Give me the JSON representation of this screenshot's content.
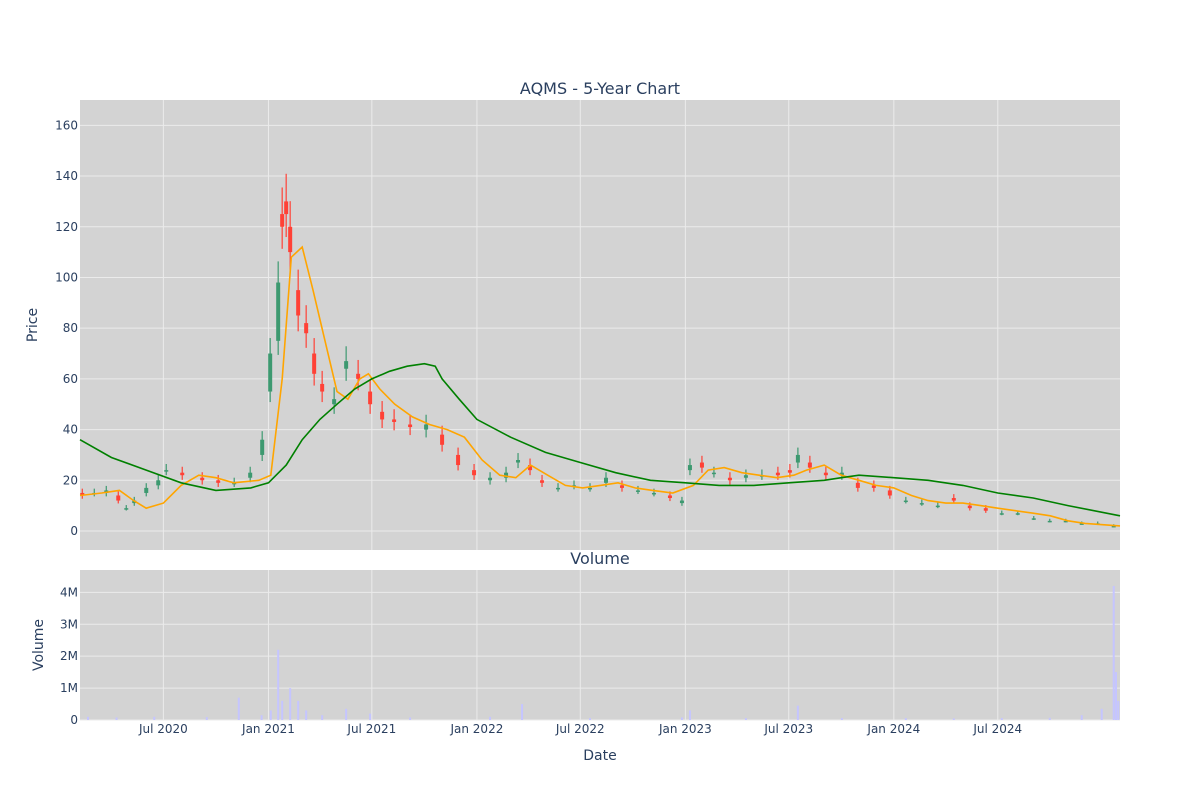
{
  "colors": {
    "plot_bg": "#d3d3d3",
    "grid": "#ebebeb",
    "text": "#2a3f5f",
    "candle_up": "#3d9970",
    "candle_down": "#ff4136",
    "ma_short": "#ffa500",
    "ma_long": "#008000",
    "volume": "#c5c5ff"
  },
  "chart_data": [
    {
      "type": "candlestick",
      "title": "AQMS - 5-Year Chart",
      "ylabel": "Price",
      "xlabel": "",
      "ylim": [
        -7.5,
        170
      ],
      "xlim": [
        "2020-02-06",
        "2025-01-31"
      ],
      "yticks": [
        0,
        20,
        40,
        60,
        80,
        100,
        120,
        140,
        160
      ],
      "grid": true,
      "legend": "none",
      "series": [
        {
          "kind": "ohlc",
          "points": [
            [
              "2020-02-10",
              15,
              14
            ],
            [
              "2020-03-02",
              15,
              15
            ],
            [
              "2020-03-23",
              15,
              16
            ],
            [
              "2020-04-13",
              14,
              12
            ],
            [
              "2020-04-27",
              9,
              9
            ],
            [
              "2020-05-11",
              11,
              12
            ],
            [
              "2020-06-01",
              15,
              17
            ],
            [
              "2020-06-22",
              18,
              20
            ],
            [
              "2020-07-06",
              24,
              24
            ],
            [
              "2020-08-03",
              23,
              22
            ],
            [
              "2020-09-07",
              21,
              20
            ],
            [
              "2020-10-05",
              20,
              19
            ],
            [
              "2020-11-02",
              19,
              19
            ],
            [
              "2020-11-30",
              21,
              23
            ],
            [
              "2020-12-21",
              30,
              36
            ],
            [
              "2021-01-04",
              55,
              70
            ],
            [
              "2021-01-18",
              75,
              98
            ],
            [
              "2021-01-25",
              125,
              120
            ],
            [
              "2021-02-01",
              130,
              125
            ],
            [
              "2021-02-08",
              120,
              110
            ],
            [
              "2021-02-22",
              95,
              85
            ],
            [
              "2021-03-08",
              82,
              78
            ],
            [
              "2021-03-22",
              70,
              62
            ],
            [
              "2021-04-05",
              58,
              55
            ],
            [
              "2021-04-26",
              50,
              52
            ],
            [
              "2021-05-17",
              64,
              67
            ],
            [
              "2021-06-07",
              62,
              60
            ],
            [
              "2021-06-28",
              55,
              50
            ],
            [
              "2021-07-19",
              47,
              44
            ],
            [
              "2021-08-09",
              44,
              43
            ],
            [
              "2021-09-06",
              42,
              41
            ],
            [
              "2021-10-04",
              40,
              42
            ],
            [
              "2021-11-01",
              38,
              34
            ],
            [
              "2021-11-29",
              30,
              26
            ],
            [
              "2021-12-27",
              24,
              22
            ],
            [
              "2022-01-24",
              20,
              21
            ],
            [
              "2022-02-21",
              21,
              23
            ],
            [
              "2022-03-14",
              27,
              28
            ],
            [
              "2022-04-04",
              26,
              24
            ],
            [
              "2022-04-25",
              20,
              19
            ],
            [
              "2022-05-23",
              17,
              17
            ],
            [
              "2022-06-20",
              18,
              18
            ],
            [
              "2022-07-18",
              17,
              17
            ],
            [
              "2022-08-15",
              19,
              21
            ],
            [
              "2022-09-12",
              18,
              17
            ],
            [
              "2022-10-10",
              16,
              16
            ],
            [
              "2022-11-07",
              15,
              15
            ],
            [
              "2022-12-05",
              14,
              13
            ],
            [
              "2022-12-26",
              11,
              12
            ],
            [
              "2023-01-09",
              24,
              26
            ],
            [
              "2023-01-30",
              27,
              25
            ],
            [
              "2023-02-20",
              23,
              23
            ],
            [
              "2023-03-20",
              21,
              20
            ],
            [
              "2023-04-17",
              21,
              22
            ],
            [
              "2023-05-15",
              22,
              22
            ],
            [
              "2023-06-12",
              23,
              22
            ],
            [
              "2023-07-03",
              24,
              23
            ],
            [
              "2023-07-17",
              27,
              30
            ],
            [
              "2023-08-07",
              27,
              25
            ],
            [
              "2023-09-04",
              23,
              22
            ],
            [
              "2023-10-02",
              22,
              23
            ],
            [
              "2023-10-30",
              19,
              17
            ],
            [
              "2023-11-27",
              18,
              17
            ],
            [
              "2023-12-25",
              16,
              14
            ],
            [
              "2024-01-22",
              12,
              12
            ],
            [
              "2024-02-19",
              11,
              11
            ],
            [
              "2024-03-18",
              10,
              10
            ],
            [
              "2024-04-15",
              13,
              12
            ],
            [
              "2024-05-13",
              10,
              9
            ],
            [
              "2024-06-10",
              9,
              8
            ],
            [
              "2024-07-08",
              7,
              7
            ],
            [
              "2024-08-05",
              7,
              7
            ],
            [
              "2024-09-02",
              5,
              5
            ],
            [
              "2024-09-30",
              4,
              4
            ],
            [
              "2024-10-28",
              4,
              4
            ],
            [
              "2024-11-25",
              3,
              3
            ],
            [
              "2024-12-23",
              3,
              3
            ],
            [
              "2025-01-20",
              2,
              2
            ]
          ]
        },
        {
          "kind": "line",
          "color_key": "ma_short",
          "x": [
            "2020-02-06",
            "2020-03-15",
            "2020-04-15",
            "2020-05-10",
            "2020-06-01",
            "2020-07-01",
            "2020-08-01",
            "2020-09-01",
            "2020-10-01",
            "2020-11-01",
            "2020-12-15",
            "2021-01-05",
            "2021-01-25",
            "2021-02-10",
            "2021-03-01",
            "2021-03-20",
            "2021-04-10",
            "2021-05-01",
            "2021-05-20",
            "2021-06-10",
            "2021-06-25",
            "2021-07-15",
            "2021-08-10",
            "2021-09-10",
            "2021-10-10",
            "2021-11-10",
            "2021-12-10",
            "2022-01-10",
            "2022-02-10",
            "2022-03-10",
            "2022-04-05",
            "2022-05-05",
            "2022-06-05",
            "2022-07-05",
            "2022-08-05",
            "2022-09-05",
            "2022-10-05",
            "2022-11-05",
            "2022-12-10",
            "2023-01-15",
            "2023-02-10",
            "2023-03-10",
            "2023-04-10",
            "2023-05-10",
            "2023-06-10",
            "2023-07-10",
            "2023-08-01",
            "2023-09-01",
            "2023-10-01",
            "2023-11-01",
            "2023-12-01",
            "2024-01-01",
            "2024-02-01",
            "2024-03-01",
            "2024-04-01",
            "2024-05-01",
            "2024-06-01",
            "2024-07-01",
            "2024-08-01",
            "2024-09-01",
            "2024-10-01",
            "2024-11-01",
            "2024-12-01",
            "2025-01-31"
          ],
          "y": [
            14,
            15,
            16,
            12,
            9,
            11,
            18,
            22,
            21,
            19,
            20,
            22,
            60,
            108,
            112,
            95,
            75,
            55,
            52,
            60,
            62,
            56,
            50,
            45,
            42,
            40,
            37,
            28,
            22,
            21,
            26,
            22,
            18,
            17,
            18,
            19,
            17,
            16,
            15,
            18,
            24,
            25,
            23,
            22,
            21,
            22,
            24,
            26,
            22,
            20,
            18,
            17,
            14,
            12,
            11,
            11,
            10,
            9,
            8,
            7,
            6,
            4,
            3,
            2
          ]
        },
        {
          "kind": "line",
          "color_key": "ma_long",
          "x": [
            "2020-02-06",
            "2020-04-01",
            "2020-06-01",
            "2020-08-01",
            "2020-10-01",
            "2020-12-01",
            "2021-01-01",
            "2021-02-01",
            "2021-03-01",
            "2021-04-01",
            "2021-05-01",
            "2021-06-01",
            "2021-07-01",
            "2021-08-01",
            "2021-09-01",
            "2021-10-01",
            "2021-10-20",
            "2021-11-01",
            "2021-12-01",
            "2022-01-01",
            "2022-03-01",
            "2022-05-01",
            "2022-07-01",
            "2022-09-01",
            "2022-11-01",
            "2023-01-01",
            "2023-03-01",
            "2023-05-01",
            "2023-07-01",
            "2023-09-01",
            "2023-10-01",
            "2023-11-01",
            "2024-01-01",
            "2024-03-01",
            "2024-05-01",
            "2024-07-01",
            "2024-09-01",
            "2024-11-01",
            "2025-01-31"
          ],
          "y": [
            36,
            29,
            24,
            19,
            16,
            17,
            19,
            26,
            36,
            44,
            50,
            56,
            60,
            63,
            65,
            66,
            65,
            60,
            52,
            44,
            37,
            31,
            27,
            23,
            20,
            19,
            18,
            18,
            19,
            20,
            21,
            22,
            21,
            20,
            18,
            15,
            13,
            10,
            6
          ]
        }
      ]
    },
    {
      "type": "bar",
      "title": "Volume",
      "xlabel": "Date",
      "ylabel": "Volume",
      "ylim": [
        0,
        4700000
      ],
      "yticks": [
        0,
        1000000,
        2000000,
        3000000,
        4000000
      ],
      "ytick_labels": [
        "0",
        "1M",
        "2M",
        "3M",
        "4M"
      ],
      "xticks": [
        "2020-07-01",
        "2021-01-01",
        "2021-07-01",
        "2022-01-01",
        "2022-07-01",
        "2023-01-01",
        "2023-07-01",
        "2024-01-01",
        "2024-07-01"
      ],
      "xtick_labels": [
        "Jul 2020",
        "Jan 2021",
        "Jul 2021",
        "Jan 2022",
        "Jul 2022",
        "Jan 2023",
        "Jul 2023",
        "Jan 2024",
        "Jul 2024"
      ],
      "grid": true,
      "x": [
        "2020-02-20",
        "2020-04-10",
        "2020-06-15",
        "2020-09-15",
        "2020-11-10",
        "2020-12-20",
        "2021-01-05",
        "2021-01-18",
        "2021-01-25",
        "2021-02-08",
        "2021-02-22",
        "2021-03-08",
        "2021-04-05",
        "2021-05-17",
        "2021-06-28",
        "2021-09-06",
        "2022-01-24",
        "2022-03-21",
        "2022-07-18",
        "2022-12-26",
        "2023-01-09",
        "2023-04-17",
        "2023-07-17",
        "2023-10-02",
        "2024-01-22",
        "2024-04-15",
        "2024-07-08",
        "2024-09-30",
        "2024-11-25",
        "2024-12-30",
        "2025-01-20",
        "2025-01-24",
        "2025-01-28"
      ],
      "values": [
        100000,
        80000,
        100000,
        90000,
        700000,
        150000,
        300000,
        2200000,
        600000,
        1000000,
        600000,
        300000,
        150000,
        350000,
        200000,
        80000,
        100000,
        500000,
        60000,
        80000,
        300000,
        60000,
        450000,
        60000,
        60000,
        50000,
        60000,
        70000,
        150000,
        350000,
        4200000,
        1500000,
        600000
      ]
    }
  ]
}
